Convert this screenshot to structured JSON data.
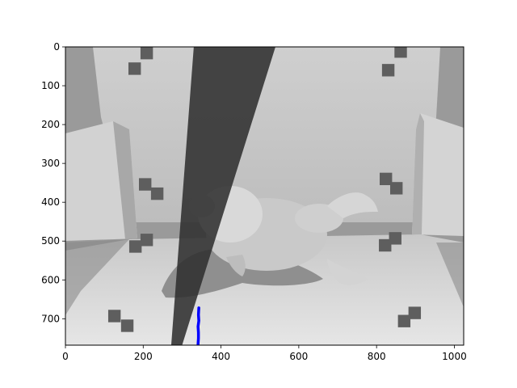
{
  "chart_data": {
    "type": "image",
    "title": "",
    "xlabel": "",
    "ylabel": "",
    "image_width": 1024,
    "image_height": 768,
    "xlim": [
      0,
      1024
    ],
    "ylim": [
      768,
      0
    ],
    "x_ticks": [
      0,
      200,
      400,
      600,
      800,
      1000
    ],
    "y_ticks": [
      0,
      100,
      200,
      300,
      400,
      500,
      600,
      700
    ],
    "grid": false,
    "colormap": "gray",
    "overlay": {
      "type": "line",
      "color": "#0000ff",
      "points": [
        [
          343,
          672
        ],
        [
          342,
          690
        ],
        [
          343,
          705
        ],
        [
          341,
          720
        ],
        [
          342,
          735
        ],
        [
          342,
          750
        ],
        [
          341,
          766
        ]
      ]
    },
    "scene": {
      "description_items": [
        "frog figurine",
        "calibration markers",
        "dark stripe"
      ],
      "dark_stripe": [
        [
          330,
          0
        ],
        [
          540,
          0
        ],
        [
          300,
          768
        ],
        [
          272,
          768
        ]
      ],
      "markers": [
        [
          209,
          16
        ],
        [
          178,
          56
        ],
        [
          205,
          354
        ],
        [
          236,
          378
        ],
        [
          180,
          514
        ],
        [
          209,
          497
        ],
        [
          126,
          693
        ],
        [
          159,
          718
        ],
        [
          862,
          12
        ],
        [
          830,
          60
        ],
        [
          824,
          340
        ],
        [
          851,
          364
        ],
        [
          822,
          511
        ],
        [
          848,
          493
        ],
        [
          871,
          706
        ],
        [
          898,
          685
        ]
      ]
    }
  }
}
